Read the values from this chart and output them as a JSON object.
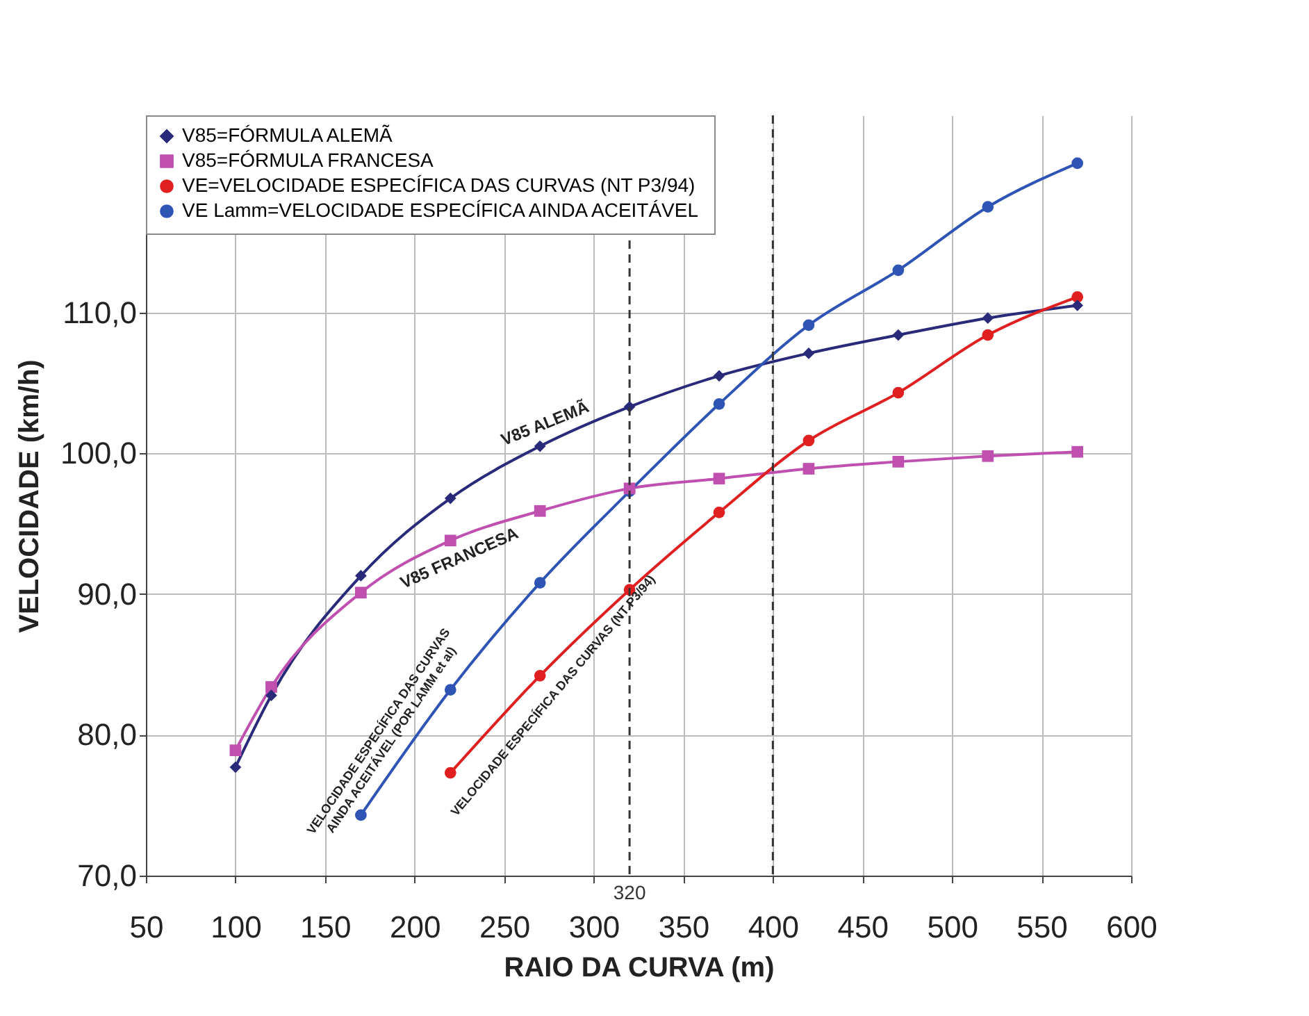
{
  "chart_data": {
    "type": "line",
    "xlabel": "RAIO DA CURVA (m)",
    "ylabel": "VELOCIDADE (km/h)",
    "xlim": [
      50,
      600
    ],
    "xticks": [
      50,
      100,
      150,
      200,
      250,
      300,
      350,
      400,
      450,
      500,
      550,
      600
    ],
    "ylim": [
      70,
      124
    ],
    "yticks": [
      {
        "value": 70,
        "label": "70,0"
      },
      {
        "value": 80,
        "label": "80,0"
      },
      {
        "value": 90,
        "label": "90,0"
      },
      {
        "value": 100,
        "label": "100,0"
      },
      {
        "value": 110,
        "label": "110,0"
      }
    ],
    "x": [
      100,
      120,
      170,
      220,
      270,
      320,
      370,
      420,
      470,
      520,
      570
    ],
    "series": [
      {
        "name": "V85=FÓRMULA ALEMÃ",
        "color": "#2a2a7a",
        "marker": "diamond",
        "values": [
          77.7,
          82.8,
          91.3,
          96.8,
          100.5,
          103.3,
          105.5,
          107.1,
          108.4,
          109.6,
          110.5
        ]
      },
      {
        "name": "V85=FÓRMULA FRANCESA",
        "color": "#c050b0",
        "marker": "square",
        "values": [
          78.9,
          83.4,
          90.1,
          93.8,
          95.9,
          97.5,
          98.2,
          98.9,
          99.4,
          99.8,
          100.1
        ]
      },
      {
        "name": "VE=VELOCIDADE ESPECÍFICA DAS CURVAS (NT P3/94)",
        "color": "#e02020",
        "marker": "circle",
        "x": [
          220,
          270,
          320,
          370,
          420,
          470,
          520,
          570
        ],
        "values": [
          77.3,
          84.2,
          90.3,
          95.8,
          100.9,
          104.3,
          108.4,
          111.1
        ]
      },
      {
        "name": "VE Lamm=VELOCIDADE ESPECÍFICA AINDA ACEITÁVEL",
        "color": "#2e55b5",
        "marker": "circle",
        "x": [
          170,
          220,
          270,
          320,
          370,
          420,
          470,
          520,
          570
        ],
        "values": [
          74.3,
          83.2,
          90.8,
          97.3,
          103.5,
          109.1,
          113.0,
          117.5,
          120.6
        ]
      }
    ],
    "ref_lines": [
      {
        "axis": "x",
        "value": 320,
        "label": "320",
        "line_style": "dashed"
      },
      {
        "axis": "x",
        "value": 400,
        "label": null,
        "line_style": "dashed"
      }
    ],
    "annotations": [
      "V85 ALEMÃ",
      "V85 FRANCESA",
      "VELOCIDADE ESPECÍFICA DAS CURVAS\nAINDA ACEITÁVEL (POR LAMM et al)",
      "VELOCIDADE ESPECÍFICA DAS CURVAS (NT P3/94)"
    ],
    "grid": true,
    "legend": "top left"
  }
}
